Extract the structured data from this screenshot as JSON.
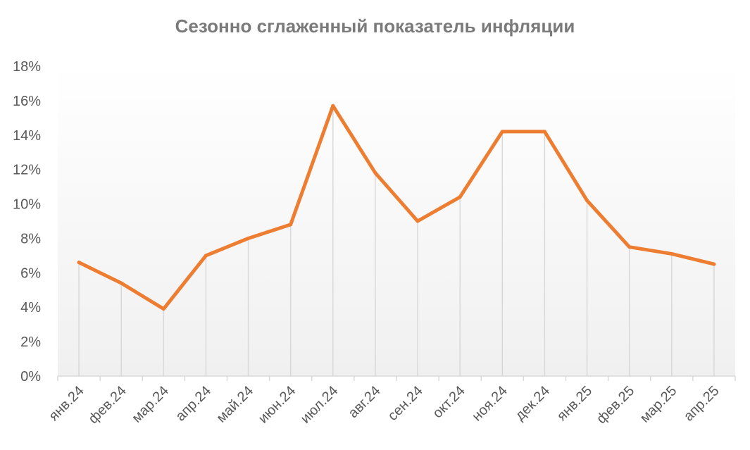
{
  "chart_data": {
    "type": "line",
    "title": "Сезонно сглаженный показатель инфляции",
    "xlabel": "",
    "ylabel": "",
    "categories": [
      "янв.24",
      "фев.24",
      "мар.24",
      "апр.24",
      "май.24",
      "июн.24",
      "июл.24",
      "авг.24",
      "сен.24",
      "окт.24",
      "ноя.24",
      "дек.24",
      "янв.25",
      "фев.25",
      "мар.25",
      "апр.25"
    ],
    "y_ticks": [
      "0%",
      "2%",
      "4%",
      "6%",
      "8%",
      "10%",
      "12%",
      "14%",
      "16%",
      "18%"
    ],
    "ylim": [
      0,
      18
    ],
    "series": [
      {
        "values": [
          6.6,
          5.4,
          3.9,
          7.0,
          8.0,
          8.8,
          15.7,
          11.8,
          9.0,
          10.4,
          14.2,
          14.2,
          10.2,
          7.5,
          7.1,
          6.5
        ]
      }
    ],
    "line_color": "#ed7d31",
    "drop_line_color": "#d9d9d9",
    "background_gradient": [
      "#ffffff",
      "#f0f0f0"
    ],
    "grid": false,
    "legend": "none"
  }
}
